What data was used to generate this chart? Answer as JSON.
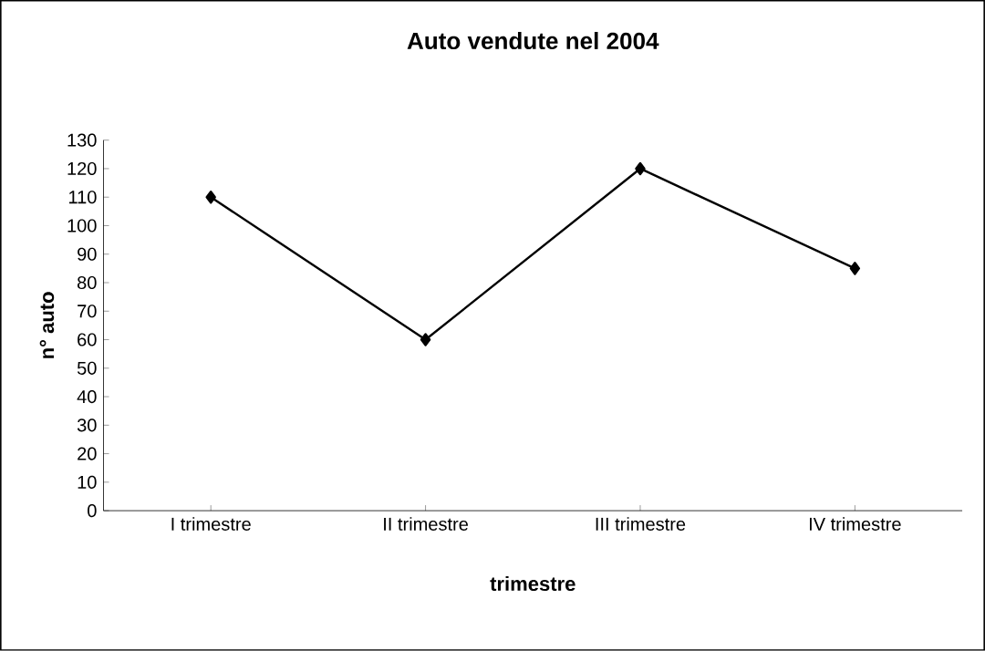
{
  "chart_data": {
    "type": "line",
    "title": "Auto vendute nel 2004",
    "xlabel": "trimestre",
    "ylabel": "n° auto",
    "categories": [
      "I trimestre",
      "II trimestre",
      "III trimestre",
      "IV trimestre"
    ],
    "values": [
      110,
      60,
      120,
      85
    ],
    "color": "#000000",
    "marker": "diamond",
    "line_style": "solid",
    "ylim": [
      0,
      130
    ],
    "yticks": [
      0,
      10,
      20,
      30,
      40,
      50,
      60,
      70,
      80,
      90,
      100,
      110,
      120,
      130
    ],
    "grid": false
  }
}
